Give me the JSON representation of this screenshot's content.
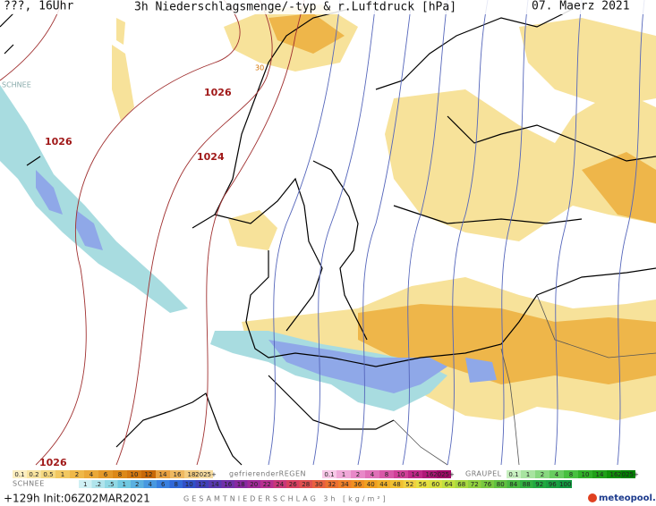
{
  "header": {
    "left": "???, 16Uhr",
    "title": "3h Niederschlagsmenge/-typ & r.Luftdruck [hPa]",
    "date": "07. Maerz 2021"
  },
  "map_labels": {
    "snow_top": "SCHNEE",
    "small": "30"
  },
  "isobar_labels": [
    "1026",
    "1026",
    "1024",
    "1026"
  ],
  "legend": {
    "rain": {
      "items": [
        "0.1",
        "0.2",
        "0.5",
        "1",
        "2",
        "4",
        "6",
        "8",
        "10",
        "12",
        "14",
        "16",
        "18",
        "2025+"
      ]
    },
    "freezing_rain": {
      "label": "gefrierenderREGEN",
      "items": [
        "0.1",
        "1",
        "2",
        "4",
        "8",
        "10",
        "14",
        "16",
        "2025+"
      ]
    },
    "graupel": {
      "label": "GRAUPEL",
      "items": [
        "0.1",
        "1",
        "2",
        "4",
        "8",
        "10",
        "14",
        "16",
        "2025+"
      ]
    },
    "snow": {
      "label": "SCHNEE"
    },
    "total": {
      "label": "GESAMTNIEDERSCHLAG 3h [kg/m²]",
      "items": [
        "1",
        ".2",
        ".5",
        "1",
        "2",
        "4",
        "6",
        "8",
        "10",
        "12",
        "14",
        "16",
        "18",
        "20",
        "22",
        "24",
        "26",
        "28",
        "30",
        "32",
        "34",
        "36",
        "40",
        "44",
        "48",
        "52",
        "56",
        "60",
        "64",
        "68",
        "72",
        "76",
        "80",
        "84",
        "88",
        "92",
        "96",
        "100"
      ]
    }
  },
  "footer": {
    "run": "+129h Init:06Z02MAR2021",
    "brand": "meteopool.org"
  }
}
